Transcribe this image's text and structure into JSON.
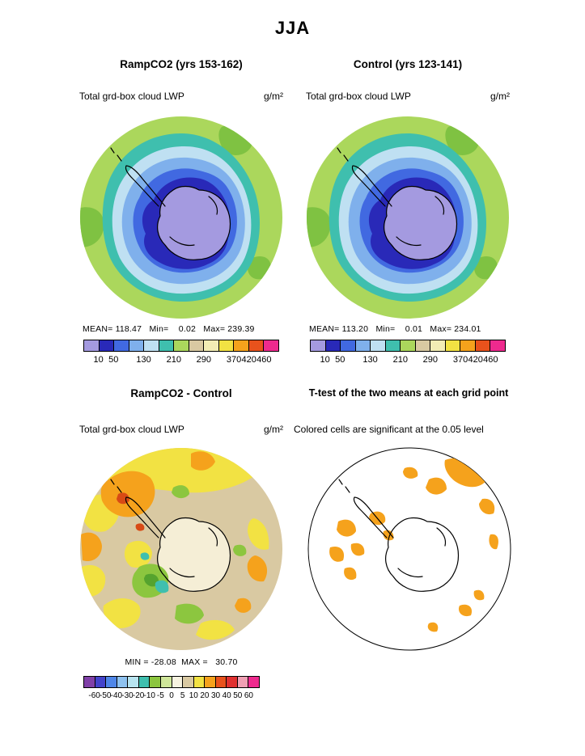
{
  "title": "JJA",
  "panels": {
    "ramp": {
      "title": "RampCO2 (yrs 153-162)",
      "variable": "Total grd-box cloud LWP",
      "units": "g/m²",
      "stats": "MEAN= 118.47   Min=    0.02   Max= 239.39"
    },
    "control": {
      "title": "Control (yrs 123-141)",
      "variable": "Total grd-box cloud LWP",
      "units": "g/m²",
      "stats": "MEAN= 113.20   Min=    0.01   Max= 234.01"
    },
    "diff": {
      "title": "RampCO2 - Control",
      "variable": "Total grd-box cloud LWP",
      "units": "g/m²",
      "stats": "MIN = -28.08  MAX =   30.70"
    },
    "ttest": {
      "title": "T-test of the two means at each grid point",
      "note": "Colored cells are significant at the 0.05 level"
    }
  },
  "colorbars": {
    "lwp": {
      "colors": [
        "#a49ae0",
        "#2929b8",
        "#4169e1",
        "#7fb0ec",
        "#bfe0f2",
        "#3fbfae",
        "#abd75c",
        "#d9c9a2",
        "#f2ecb4",
        "#f2e243",
        "#f5a21c",
        "#e8521c",
        "#ee2a8e"
      ],
      "ticks": [
        {
          "label": "10",
          "pos": 7.7
        },
        {
          "label": "50",
          "pos": 15.4
        },
        {
          "label": "130",
          "pos": 30.8
        },
        {
          "label": "210",
          "pos": 46.2
        },
        {
          "label": "290",
          "pos": 61.5
        },
        {
          "label": "370",
          "pos": 76.9
        },
        {
          "label": "420",
          "pos": 84.6
        },
        {
          "label": "460",
          "pos": 92.3
        }
      ]
    },
    "diff": {
      "colors": [
        "#8040a8",
        "#4343cb",
        "#4f86e8",
        "#8fc2f0",
        "#b8e4f0",
        "#3fbfae",
        "#8cc63f",
        "#cfe69a",
        "#f7f3e1",
        "#d9c9a2",
        "#f2e243",
        "#f5a21c",
        "#e8521c",
        "#e03030",
        "#f0a0b4",
        "#ee2a8e"
      ],
      "ticks": [
        {
          "label": "-60",
          "pos": 6.25
        },
        {
          "label": "-50",
          "pos": 12.5
        },
        {
          "label": "-40",
          "pos": 18.75
        },
        {
          "label": "-30",
          "pos": 25
        },
        {
          "label": "-20",
          "pos": 31.25
        },
        {
          "label": "-10",
          "pos": 37.5
        },
        {
          "label": "-5",
          "pos": 43.75
        },
        {
          "label": "0",
          "pos": 50
        },
        {
          "label": "5",
          "pos": 56.25
        },
        {
          "label": "10",
          "pos": 62.5
        },
        {
          "label": "20",
          "pos": 68.75
        },
        {
          "label": "30",
          "pos": 75
        },
        {
          "label": "40",
          "pos": 81.25
        },
        {
          "label": "50",
          "pos": 87.5
        },
        {
          "label": "60",
          "pos": 93.75
        }
      ]
    }
  },
  "chart_data": [
    {
      "type": "heatmap",
      "panel": "top-left",
      "season": "JJA",
      "title": "RampCO2 (yrs 153-162)",
      "variable": "Total grd-box cloud LWP",
      "units": "g/m²",
      "projection": "south polar stereographic",
      "mean": 118.47,
      "min": 0.02,
      "max": 239.39,
      "contour_levels": [
        10,
        50,
        90,
        130,
        170,
        210,
        250,
        290,
        330,
        370,
        420,
        460
      ],
      "legend_position": "below"
    },
    {
      "type": "heatmap",
      "panel": "top-right",
      "season": "JJA",
      "title": "Control (yrs 123-141)",
      "variable": "Total grd-box cloud LWP",
      "units": "g/m²",
      "projection": "south polar stereographic",
      "mean": 113.2,
      "min": 0.01,
      "max": 234.01,
      "contour_levels": [
        10,
        50,
        90,
        130,
        170,
        210,
        250,
        290,
        330,
        370,
        420,
        460
      ],
      "legend_position": "below"
    },
    {
      "type": "heatmap",
      "panel": "bottom-left",
      "season": "JJA",
      "title": "RampCO2 - Control",
      "variable": "Total grd-box cloud LWP difference",
      "units": "g/m²",
      "projection": "south polar stereographic",
      "min": -28.08,
      "max": 30.7,
      "contour_levels": [
        -60,
        -50,
        -40,
        -30,
        -20,
        -10,
        -5,
        0,
        5,
        10,
        20,
        30,
        40,
        50,
        60
      ],
      "legend_position": "below"
    },
    {
      "type": "map",
      "panel": "bottom-right",
      "season": "JJA",
      "title": "T-test of the two means at each grid point",
      "note": "Colored cells are significant at the 0.05 level",
      "significance_level": 0.05,
      "significant_color": "#f5a21c",
      "background": "#ffffff"
    }
  ]
}
